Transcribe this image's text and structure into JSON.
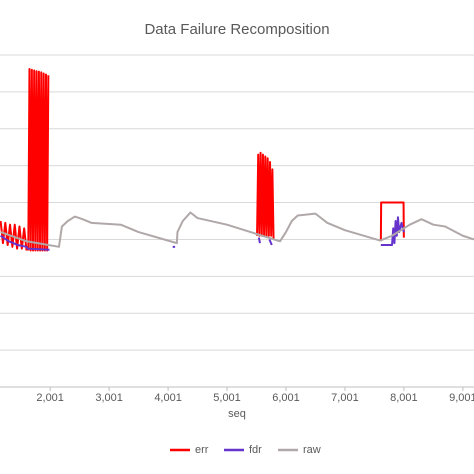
{
  "chart_data": {
    "type": "line",
    "title": "Data Failure Recomposition",
    "x_label": "seq",
    "xlim": [
      1150,
      9190
    ],
    "ylim": [
      0,
      9
    ],
    "xticks": [
      {
        "value": 2001,
        "label": "2,001"
      },
      {
        "value": 3001,
        "label": "3,001"
      },
      {
        "value": 4001,
        "label": "4,001"
      },
      {
        "value": 5001,
        "label": "5,001"
      },
      {
        "value": 6001,
        "label": "6,001"
      },
      {
        "value": 7001,
        "label": "7,001"
      },
      {
        "value": 8001,
        "label": "8,001"
      },
      {
        "value": 9001,
        "label": "9,001"
      }
    ],
    "ygrid": [
      1,
      2,
      3,
      4,
      5,
      6,
      7,
      8,
      9
    ],
    "grid": true,
    "legend": "bottom",
    "series": [
      {
        "name": "err",
        "color": "#ff0000",
        "x": [
          1160,
          1200,
          1240,
          1280,
          1320,
          1360,
          1400,
          1440,
          1480,
          1520,
          1560,
          1600,
          1615,
          1630,
          1650,
          1670,
          1690,
          1710,
          1730,
          1750,
          1770,
          1790,
          1810,
          1830,
          1850,
          1870,
          1890,
          1910,
          1930,
          1950,
          1970,
          1990,
          5510,
          5530,
          5550,
          5570,
          5590,
          5610,
          5630,
          5650,
          5670,
          5690,
          5710,
          5730,
          5750,
          5770,
          5790,
          5800,
          7610,
          7615,
          7995,
          8000
        ],
        "values": [
          4.5,
          3.9,
          4.45,
          3.85,
          4.4,
          3.8,
          4.4,
          3.75,
          4.35,
          3.75,
          4.3,
          3.7,
          null,
          3.7,
          8.62,
          3.7,
          8.6,
          3.7,
          8.58,
          3.7,
          8.56,
          3.7,
          8.55,
          3.7,
          8.53,
          3.7,
          8.5,
          3.7,
          8.47,
          3.7,
          8.45,
          null,
          4.1,
          6.3,
          4.1,
          6.35,
          4.1,
          6.3,
          4.1,
          6.25,
          4.1,
          6.2,
          4.1,
          6.1,
          4.1,
          5.9,
          4.0,
          null,
          3.95,
          5.0,
          5.0,
          4.05
        ]
      },
      {
        "name": "fdr",
        "color": "#6633cc",
        "x": [
          1160,
          1300,
          1450,
          1600,
          1620,
          1990,
          2000,
          4080,
          4120,
          4150,
          5540,
          5560,
          5580,
          5720,
          5760,
          5800,
          7610,
          7800,
          7820,
          7840,
          7860,
          7880,
          7900,
          7920,
          7960,
          8000
        ],
        "values": [
          4.1,
          3.95,
          3.85,
          3.8,
          3.75,
          3.72,
          null,
          3.8,
          3.8,
          null,
          4.05,
          3.9,
          null,
          4.0,
          3.85,
          null,
          3.85,
          3.85,
          4.3,
          3.9,
          4.5,
          4.1,
          4.6,
          4.2,
          4.45,
          4.2
        ]
      },
      {
        "name": "raw",
        "color": "#b0a8a8",
        "x": [
          1160,
          1600,
          2150,
          2200,
          2300,
          2420,
          2550,
          2700,
          3200,
          3500,
          4150,
          4160,
          4250,
          4380,
          4500,
          5000,
          5400,
          5900,
          6000,
          6100,
          6200,
          6500,
          6700,
          7000,
          7600,
          7800,
          8100,
          8300,
          8500,
          8700,
          9000,
          9190
        ],
        "values": [
          4.2,
          3.95,
          3.8,
          4.35,
          4.5,
          4.62,
          4.55,
          4.45,
          4.4,
          4.2,
          3.9,
          4.2,
          4.5,
          4.73,
          4.58,
          4.4,
          4.2,
          3.95,
          4.2,
          4.5,
          4.65,
          4.7,
          4.45,
          4.25,
          3.97,
          4.1,
          4.4,
          4.55,
          4.4,
          4.35,
          4.1,
          4.0
        ]
      }
    ]
  }
}
